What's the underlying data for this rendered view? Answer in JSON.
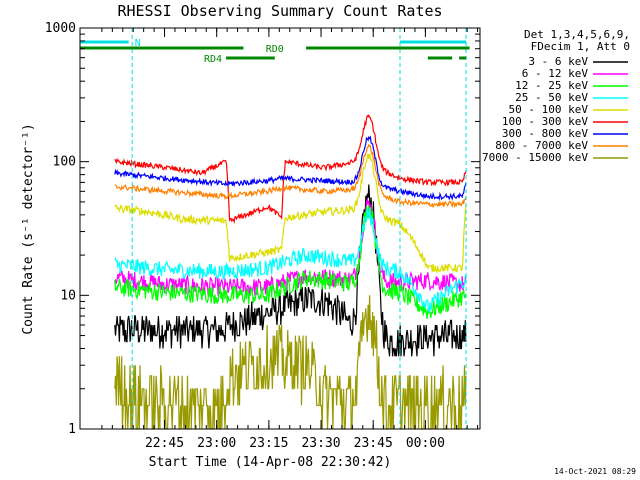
{
  "chart_data": {
    "type": "line",
    "title": "RHESSI Observing Summary Count Rates",
    "xlabel": "Start Time (14-Apr-08 22:30:42)",
    "ylabel": "Count Rate (s⁻¹ detector⁻¹)",
    "y_scale": "log",
    "ylim": [
      1,
      1000
    ],
    "xlim": [
      -10,
      105
    ],
    "y_ticks": [
      {
        "value": 1,
        "label": "1"
      },
      {
        "value": 10,
        "label": "10"
      },
      {
        "value": 100,
        "label": "100"
      },
      {
        "value": 1000,
        "label": "1000"
      }
    ],
    "x_ticks": [
      {
        "value": 14.3,
        "label": "22:45"
      },
      {
        "value": 29.3,
        "label": "23:00"
      },
      {
        "value": 44.3,
        "label": "23:15"
      },
      {
        "value": 59.3,
        "label": "23:30"
      },
      {
        "value": 74.3,
        "label": "23:45"
      },
      {
        "value": 89.3,
        "label": "00:00"
      }
    ],
    "x_minor_step": 3,
    "vertical_markers": [
      -10,
      5,
      82,
      101
    ],
    "marker_color": "#00e0e0",
    "flag_bars": [
      {
        "label": "N",
        "color": "#00e0e0",
        "level": 0,
        "segments": [
          [
            -10,
            4
          ],
          [
            82,
            101
          ]
        ]
      },
      {
        "label": "RD0",
        "color": "#008800",
        "level": 1,
        "segments": [
          [
            -10,
            37
          ],
          [
            55,
            102
          ]
        ]
      },
      {
        "label": "RD4",
        "color": "#008800",
        "level": 2,
        "segments": [
          [
            32,
            46
          ],
          [
            90,
            97
          ],
          [
            99,
            101
          ]
        ]
      }
    ],
    "legend_header": [
      "Det 1,3,4,5,6,9,",
      "FDecim 1, Att 0"
    ],
    "series": [
      {
        "name": "3 - 6 keV",
        "color": "#000000",
        "base": 5.5,
        "flare_peak": 54,
        "noise": 0.12,
        "segments": [
          [
            0,
            5.5
          ],
          [
            30,
            5.5
          ],
          [
            45,
            7.5
          ],
          [
            55,
            9.3
          ],
          [
            61,
            9.0
          ],
          [
            70,
            5.0
          ],
          [
            80,
            4.5
          ],
          [
            88,
            4.8
          ],
          [
            101,
            5.0
          ]
        ]
      },
      {
        "name": "6 - 12 keV",
        "color": "#ff00ff",
        "base": 12,
        "flare_peak": 48,
        "noise": 0.07,
        "segments": [
          [
            0,
            13.5
          ],
          [
            15,
            12.0
          ],
          [
            32,
            11.5
          ],
          [
            44,
            11.5
          ],
          [
            55,
            14.0
          ],
          [
            70,
            13.0
          ],
          [
            82,
            12.5
          ],
          [
            90,
            13.0
          ],
          [
            101,
            12.0
          ]
        ]
      },
      {
        "name": "12 - 25 keV",
        "color": "#00ff00",
        "base": 11,
        "flare_peak": 45,
        "noise": 0.07,
        "segments": [
          [
            0,
            11.5
          ],
          [
            15,
            10.5
          ],
          [
            32,
            10.0
          ],
          [
            44,
            10.0
          ],
          [
            55,
            13.5
          ],
          [
            70,
            12.0
          ],
          [
            82,
            10.5
          ],
          [
            90,
            7.5
          ],
          [
            101,
            10.0
          ]
        ]
      },
      {
        "name": "25 - 50 keV",
        "color": "#00ffff",
        "base": 16,
        "flare_peak": 40,
        "noise": 0.06,
        "segments": [
          [
            0,
            17.0
          ],
          [
            15,
            15.5
          ],
          [
            32,
            15.0
          ],
          [
            44,
            16.0
          ],
          [
            55,
            20.0
          ],
          [
            70,
            17.5
          ],
          [
            82,
            15.0
          ],
          [
            90,
            8.0
          ],
          [
            101,
            13.0
          ]
        ]
      },
      {
        "name": "50 - 100 keV",
        "color": "#dddd00",
        "base": 40,
        "flare_peak": 110,
        "noise": 0.03,
        "segments": [
          [
            0,
            45
          ],
          [
            10,
            42
          ],
          [
            20,
            37
          ],
          [
            32,
            36
          ],
          [
            33,
            19
          ],
          [
            44,
            21
          ],
          [
            48,
            22
          ],
          [
            49,
            38
          ],
          [
            60,
            42
          ],
          [
            70,
            44
          ],
          [
            82,
            34
          ],
          [
            90,
            16
          ],
          [
            100,
            16
          ],
          [
            101,
            48
          ]
        ]
      },
      {
        "name": "100 - 300 keV",
        "color": "#ff0000",
        "base": 100,
        "flare_peak": 215,
        "noise": 0.02,
        "segments": [
          [
            0,
            100
          ],
          [
            15,
            90
          ],
          [
            25,
            82
          ],
          [
            32,
            100
          ],
          [
            33,
            36
          ],
          [
            40,
            42
          ],
          [
            44,
            46
          ],
          [
            48,
            38
          ],
          [
            49,
            100
          ],
          [
            60,
            90
          ],
          [
            70,
            100
          ],
          [
            82,
            75
          ],
          [
            90,
            70
          ],
          [
            100,
            70
          ],
          [
            101,
            85
          ]
        ]
      },
      {
        "name": "300 - 800 keV",
        "color": "#0000ff",
        "base": 80,
        "flare_peak": 150,
        "noise": 0.02,
        "segments": [
          [
            0,
            82
          ],
          [
            15,
            75
          ],
          [
            32,
            68
          ],
          [
            44,
            72
          ],
          [
            48,
            75
          ],
          [
            60,
            72
          ],
          [
            70,
            70
          ],
          [
            82,
            60
          ],
          [
            90,
            55
          ],
          [
            100,
            55
          ],
          [
            101,
            68
          ]
        ]
      },
      {
        "name": "800 - 7000 keV",
        "color": "#ff8000",
        "base": 62,
        "flare_peak": 130,
        "noise": 0.02,
        "segments": [
          [
            0,
            65
          ],
          [
            15,
            60
          ],
          [
            32,
            55
          ],
          [
            44,
            60
          ],
          [
            48,
            64
          ],
          [
            60,
            60
          ],
          [
            70,
            62
          ],
          [
            82,
            50
          ],
          [
            90,
            48
          ],
          [
            100,
            48
          ],
          [
            101,
            55
          ]
        ]
      },
      {
        "name": "7000 - 15000 keV",
        "color": "#999900",
        "base": 2.5,
        "flare_peak": 8,
        "noise": 0.25,
        "segments": [
          [
            0,
            2.4
          ],
          [
            5,
            1.7
          ],
          [
            20,
            1.5
          ],
          [
            30,
            1.4
          ],
          [
            34,
            2.6
          ],
          [
            45,
            3.4
          ],
          [
            55,
            3.0
          ],
          [
            60,
            1.8
          ],
          [
            70,
            1.5
          ],
          [
            80,
            1.5
          ],
          [
            101,
            1.6
          ]
        ]
      }
    ],
    "flare": {
      "center": 73,
      "width": 2.2
    },
    "footer_date": "14-Oct-2021 08:29"
  }
}
